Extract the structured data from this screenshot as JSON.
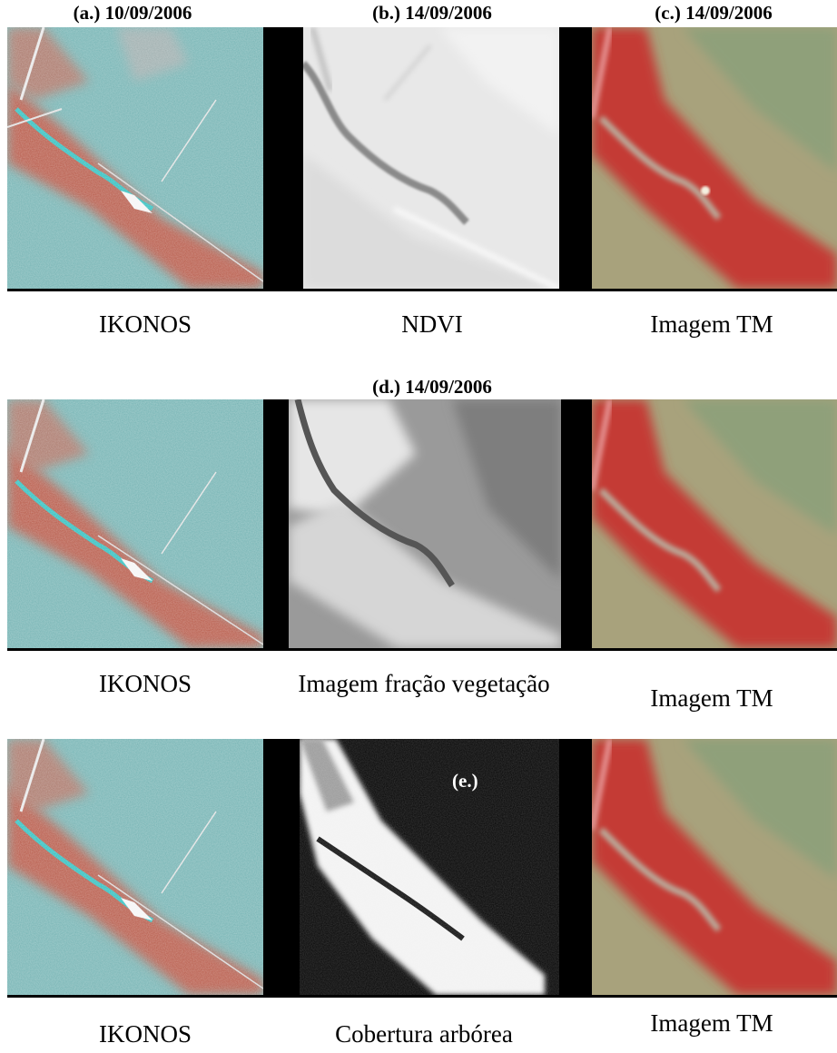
{
  "rows": [
    {
      "headers": [
        "(a.) 10/09/2006",
        "(b.) 14/09/2006",
        "(c.) 14/09/2006"
      ],
      "captions": [
        "IKONOS",
        "NDVI",
        "Imagem TM"
      ]
    },
    {
      "headers": [
        "(d.) 14/09/2006"
      ],
      "captions": [
        "IKONOS",
        "Imagem fração vegetação",
        "Imagem TM"
      ]
    },
    {
      "overlay": "(e.)",
      "captions": [
        "IKONOS",
        "Cobertura arbórea",
        "Imagem TM"
      ]
    }
  ],
  "colors": {
    "ikonos_cyan": "#6fb2b4",
    "ikonos_red": "#b8503c",
    "tm_red": "#c43a34",
    "tm_green": "#8f9a72"
  }
}
